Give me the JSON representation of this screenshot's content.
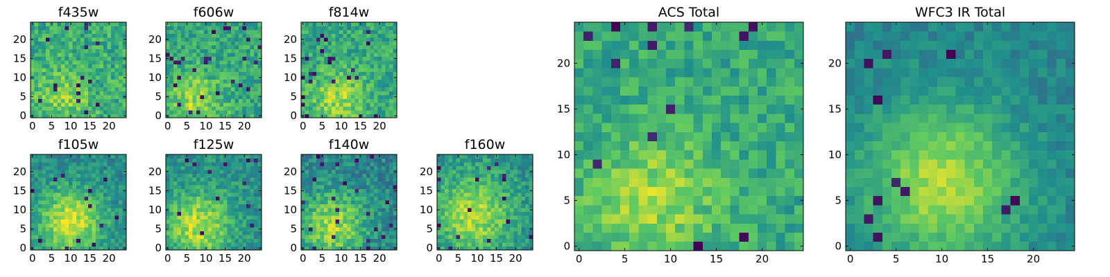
{
  "colormap": "viridis",
  "colors": {
    "background": "#ffffff",
    "axes_frame": "#000000",
    "colormap_stops": [
      "#440154",
      "#3b528b",
      "#21918c",
      "#5ec962",
      "#fde725"
    ]
  },
  "chart_data": [
    {
      "type": "heatmap",
      "title": "f435w",
      "size": 25,
      "xticks": [
        0,
        5,
        10,
        15,
        20
      ],
      "yticks": [
        0,
        5,
        10,
        15,
        20
      ],
      "xlim": [
        -0.5,
        24.5
      ],
      "ylim": [
        -0.5,
        24.5
      ],
      "blob": {
        "x": 8,
        "y": 5,
        "amplitude": 0.18,
        "sigma": 5
      },
      "base_level": 0.62,
      "noise": 0.16,
      "dark_pixel_rate": 0.03,
      "seed": 11
    },
    {
      "type": "heatmap",
      "title": "f606w",
      "size": 25,
      "xticks": [
        0,
        5,
        10,
        15,
        20
      ],
      "yticks": [
        0,
        5,
        10,
        15,
        20
      ],
      "xlim": [
        -0.5,
        24.5
      ],
      "ylim": [
        -0.5,
        24.5
      ],
      "blob": {
        "x": 7,
        "y": 4,
        "amplitude": 0.25,
        "sigma": 5
      },
      "base_level": 0.6,
      "noise": 0.15,
      "dark_pixel_rate": 0.04,
      "seed": 23
    },
    {
      "type": "heatmap",
      "title": "f814w",
      "size": 25,
      "xticks": [
        0,
        5,
        10,
        15,
        20
      ],
      "yticks": [
        0,
        5,
        10,
        15,
        20
      ],
      "xlim": [
        -0.5,
        24.5
      ],
      "ylim": [
        -0.5,
        24.5
      ],
      "blob": {
        "x": 9,
        "y": 5,
        "amplitude": 0.25,
        "sigma": 5
      },
      "base_level": 0.6,
      "noise": 0.15,
      "dark_pixel_rate": 0.04,
      "seed": 37
    },
    {
      "type": "heatmap",
      "title": "f105w",
      "size": 25,
      "xticks": [
        0,
        5,
        10,
        15,
        20
      ],
      "yticks": [
        0,
        5,
        10,
        15,
        20
      ],
      "xlim": [
        -0.5,
        24.5
      ],
      "ylim": [
        -0.5,
        24.5
      ],
      "blob": {
        "x": 10,
        "y": 7,
        "amplitude": 0.45,
        "sigma": 6
      },
      "base_level": 0.48,
      "noise": 0.12,
      "dark_pixel_rate": 0.02,
      "seed": 41
    },
    {
      "type": "heatmap",
      "title": "f125w",
      "size": 25,
      "xticks": [
        0,
        5,
        10,
        15,
        20
      ],
      "yticks": [
        0,
        5,
        10,
        15,
        20
      ],
      "xlim": [
        -0.5,
        24.5
      ],
      "ylim": [
        -0.5,
        24.5
      ],
      "blob": {
        "x": 8,
        "y": 6,
        "amplitude": 0.4,
        "sigma": 6
      },
      "base_level": 0.5,
      "noise": 0.13,
      "dark_pixel_rate": 0.02,
      "seed": 53
    },
    {
      "type": "heatmap",
      "title": "f140w",
      "size": 25,
      "xticks": [
        0,
        5,
        10,
        15,
        20
      ],
      "yticks": [
        0,
        5,
        10,
        15,
        20
      ],
      "xlim": [
        -0.5,
        24.5
      ],
      "ylim": [
        -0.5,
        24.5
      ],
      "blob": {
        "x": 8,
        "y": 6,
        "amplitude": 0.4,
        "sigma": 6
      },
      "base_level": 0.46,
      "noise": 0.14,
      "dark_pixel_rate": 0.03,
      "seed": 67
    },
    {
      "type": "heatmap",
      "title": "f160w",
      "size": 25,
      "xticks": [
        0,
        5,
        10,
        15,
        20
      ],
      "yticks": [
        0,
        5,
        10,
        15,
        20
      ],
      "xlim": [
        -0.5,
        24.5
      ],
      "ylim": [
        -0.5,
        24.5
      ],
      "blob": {
        "x": 9,
        "y": 9,
        "amplitude": 0.38,
        "sigma": 7
      },
      "base_level": 0.5,
      "noise": 0.13,
      "dark_pixel_rate": 0.03,
      "seed": 79
    },
    {
      "type": "heatmap",
      "title": "ACS Total",
      "size": 25,
      "xticks": [
        0,
        5,
        10,
        15,
        20
      ],
      "yticks": [
        0,
        5,
        10,
        15,
        20
      ],
      "xlim": [
        -0.5,
        24.5
      ],
      "ylim": [
        -0.5,
        24.5
      ],
      "blob": {
        "x": 8,
        "y": 5,
        "amplitude": 0.25,
        "sigma": 5
      },
      "base_level": 0.6,
      "noise": 0.13,
      "dark_pixel_rate": 0.03,
      "seed": 97
    },
    {
      "type": "heatmap",
      "title": "WFC3 IR Total",
      "size": 25,
      "xticks": [
        0,
        5,
        10,
        15,
        20
      ],
      "yticks": [
        0,
        5,
        10,
        15,
        20
      ],
      "xlim": [
        -0.5,
        24.5
      ],
      "ylim": [
        -0.5,
        24.5
      ],
      "blob": {
        "x": 10,
        "y": 7,
        "amplitude": 0.42,
        "sigma": 6
      },
      "base_level": 0.45,
      "noise": 0.08,
      "dark_pixel_rate": 0.02,
      "seed": 109
    }
  ]
}
